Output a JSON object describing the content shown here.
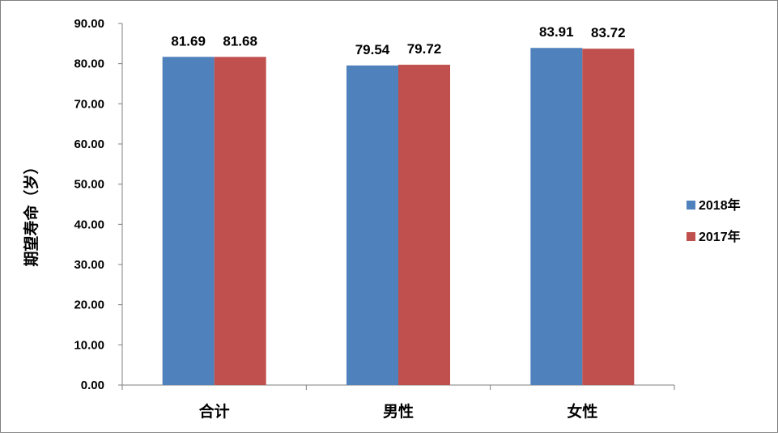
{
  "chart_data": {
    "type": "bar",
    "ylabel": "期望寿命（岁）",
    "categories": [
      "合计",
      "男性",
      "女性"
    ],
    "series": [
      {
        "name": "2018年",
        "color": "#4f81bd",
        "values": [
          81.69,
          79.54,
          83.91
        ]
      },
      {
        "name": "2017年",
        "color": "#c0504d",
        "values": [
          81.68,
          79.72,
          83.72
        ]
      }
    ],
    "ylim": [
      0,
      90
    ],
    "yticks": [
      "0.00",
      "10.00",
      "20.00",
      "30.00",
      "40.00",
      "50.00",
      "60.00",
      "70.00",
      "80.00",
      "90.00"
    ],
    "grid": false,
    "legend_position": "right"
  }
}
